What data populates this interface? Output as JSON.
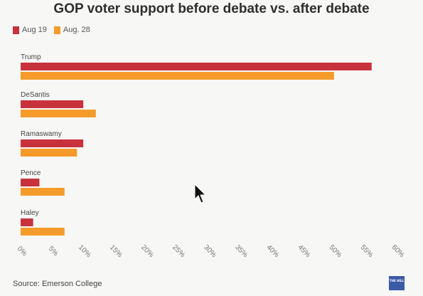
{
  "chart_data": {
    "type": "bar",
    "orientation": "horizontal",
    "title": "GOP voter support before debate vs. after debate",
    "categories": [
      "Trump",
      "DeSantis",
      "Ramaswamy",
      "Pence",
      "Haley"
    ],
    "series": [
      {
        "name": "Aug 19",
        "values": [
          56,
          10,
          10,
          3,
          2
        ],
        "color": "#c8323d"
      },
      {
        "name": "Aug. 28",
        "values": [
          50,
          12,
          9,
          7,
          7
        ],
        "color": "#f59b2b"
      }
    ],
    "xticks": [
      "0%",
      "5%",
      "10%",
      "15%",
      "20%",
      "25%",
      "30%",
      "35%",
      "40%",
      "45%",
      "50%",
      "55%",
      "60%"
    ],
    "xlim": [
      0,
      60
    ],
    "grid": false,
    "legend": "top-left",
    "xlabel": "",
    "ylabel": ""
  },
  "source": "Source: Emerson College",
  "logo_text": "THE HILL",
  "cursor_icon": "mouse-pointer-icon"
}
